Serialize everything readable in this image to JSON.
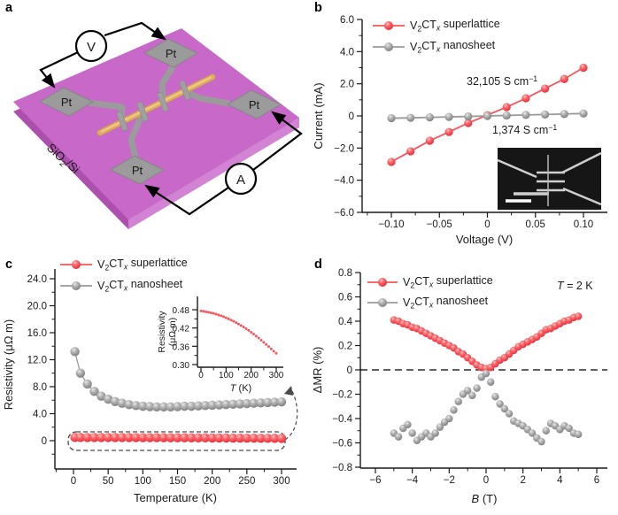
{
  "palette": {
    "red": "#f5454e",
    "red_line": "#f5565c",
    "gray": "#8f8f8f",
    "gray_line": "#9a9a9a",
    "substrate": "#c868c8",
    "substrate_side_left": "#ad4fad",
    "substrate_side_right": "#d383d3",
    "electrode": "#9b9b9b",
    "nanowire": "#dfae63",
    "meter_text": "#2e5bd7"
  },
  "panel_a": {
    "label": "a",
    "substrate_label": "SiO{2}/Si",
    "electrode_label": "Pt",
    "voltmeter_label": "V",
    "ammeter_label": "A"
  },
  "panel_b": {
    "label": "b",
    "chart_data": {
      "type": "scatter",
      "xlabel": "Voltage (V)",
      "ylabel": "Current (mA)",
      "xlim": [
        -0.13,
        0.125
      ],
      "ylim": [
        -6,
        6
      ],
      "xticks": {
        "values": [
          -0.1,
          -0.05,
          0,
          0.05,
          0.1
        ],
        "labels": [
          "−0.10",
          "−0.05",
          "0",
          "0.05",
          "0.10"
        ]
      },
      "yticks": {
        "values": [
          6,
          4,
          2,
          0,
          -2,
          -4,
          -6
        ],
        "labels": [
          "6.0",
          "4.0",
          "2.0",
          "0",
          "−2.0",
          "−4.0",
          "−6.0"
        ]
      },
      "legend": [
        {
          "label": "V{2}CT{x} superlattice",
          "color": "red"
        },
        {
          "label": "V{2}CT{x} nanosheet",
          "color": "gray"
        }
      ],
      "annotations": [
        "32,105 S cm^{−1}",
        "1,374 S cm^{−1}"
      ],
      "series": [
        {
          "name": "V2CTx superlattice",
          "color": "red",
          "line": true,
          "x": [
            -0.1,
            -0.08,
            -0.06,
            -0.04,
            -0.02,
            0,
            0.02,
            0.04,
            0.06,
            0.08,
            0.1
          ],
          "y": [
            -2.86,
            -2.2,
            -1.54,
            -1.0,
            -0.44,
            0.05,
            0.55,
            1.1,
            1.7,
            2.3,
            3.0
          ]
        },
        {
          "name": "V2CTx nanosheet",
          "color": "gray",
          "line": true,
          "x": [
            -0.1,
            -0.08,
            -0.06,
            -0.04,
            -0.02,
            0,
            0.02,
            0.04,
            0.06,
            0.08,
            0.1
          ],
          "y": [
            -0.14,
            -0.12,
            -0.09,
            -0.06,
            -0.03,
            0,
            0.03,
            0.06,
            0.09,
            0.12,
            0.15
          ]
        }
      ],
      "inset": {
        "type": "sem-image",
        "description": "scanning electron micrograph of device with scale bar"
      }
    }
  },
  "panel_c": {
    "label": "c",
    "chart_data": {
      "type": "scatter",
      "xlabel": "Temperature (K)",
      "ylabel": "Resistivity (μΩ m)",
      "xlim": [
        -27,
        322
      ],
      "ylim": [
        -4.2,
        25.4
      ],
      "xticks": {
        "values": [
          0,
          50,
          100,
          150,
          200,
          250,
          300
        ],
        "labels": [
          "0",
          "50",
          "100",
          "150",
          "200",
          "250",
          "300"
        ]
      },
      "yticks": {
        "values": [
          24,
          20,
          16,
          12,
          8,
          4,
          0
        ],
        "labels": [
          "24.0",
          "20.0",
          "16.0",
          "12.0",
          "8.0",
          "4.0",
          "0"
        ]
      },
      "legend": [
        {
          "label": "V{2}CT{x} superlattice",
          "color": "red"
        },
        {
          "label": "V{2}CT{x} nanosheet",
          "color": "gray"
        }
      ],
      "series": [
        {
          "name": "V2CTx nanosheet",
          "color": "gray",
          "line": true,
          "x": [
            2,
            10,
            20,
            30,
            40,
            50,
            60,
            70,
            80,
            90,
            100,
            110,
            120,
            130,
            140,
            150,
            160,
            170,
            180,
            190,
            200,
            210,
            220,
            230,
            240,
            250,
            260,
            270,
            280,
            290,
            300
          ],
          "y": [
            13.2,
            10.0,
            8.4,
            7.3,
            6.6,
            6.15,
            5.8,
            5.55,
            5.35,
            5.2,
            5.1,
            5.05,
            5.0,
            5.0,
            5.0,
            5.05,
            5.1,
            5.1,
            5.15,
            5.2,
            5.25,
            5.3,
            5.35,
            5.4,
            5.45,
            5.5,
            5.55,
            5.6,
            5.65,
            5.7,
            5.75
          ]
        },
        {
          "name": "V2CTx superlattice",
          "color": "red",
          "line": false,
          "x": [
            2,
            10,
            20,
            30,
            40,
            50,
            60,
            70,
            80,
            90,
            100,
            110,
            120,
            130,
            140,
            150,
            160,
            170,
            180,
            190,
            200,
            210,
            220,
            230,
            240,
            250,
            260,
            270,
            280,
            290,
            300
          ],
          "y": [
            0.476,
            0.4745,
            0.473,
            0.4715,
            0.47,
            0.468,
            0.4655,
            0.463,
            0.46,
            0.457,
            0.4535,
            0.45,
            0.446,
            0.442,
            0.4375,
            0.433,
            0.428,
            0.423,
            0.4175,
            0.412,
            0.406,
            0.4,
            0.3935,
            0.387,
            0.38,
            0.373,
            0.366,
            0.359,
            0.3515,
            0.344,
            0.337
          ]
        }
      ],
      "inset": {
        "type": "line",
        "xlabel": "*T* (K)",
        "ylabel_line1": "Resistivity",
        "ylabel_line2": "(μΩ m)",
        "xticks": {
          "values": [
            0,
            100,
            200,
            300
          ],
          "labels": [
            "0",
            "100",
            "200",
            "300"
          ]
        },
        "yticks": {
          "values": [
            0.48,
            0.42,
            0.36,
            0.3
          ],
          "labels": [
            "0.48",
            "0.42",
            "0.36",
            "0.30"
          ]
        },
        "series": {
          "name": "V2CTx superlattice zoom",
          "color": "red",
          "x": [
            0,
            10,
            20,
            30,
            40,
            50,
            60,
            70,
            80,
            90,
            100,
            110,
            120,
            130,
            140,
            150,
            160,
            170,
            180,
            190,
            200,
            210,
            220,
            230,
            240,
            250,
            260,
            270,
            280,
            290,
            300
          ],
          "y": [
            0.476,
            0.4745,
            0.473,
            0.4715,
            0.47,
            0.468,
            0.4655,
            0.463,
            0.46,
            0.457,
            0.4535,
            0.45,
            0.446,
            0.442,
            0.4375,
            0.433,
            0.428,
            0.423,
            0.4175,
            0.412,
            0.406,
            0.4,
            0.3935,
            0.387,
            0.38,
            0.373,
            0.366,
            0.359,
            0.3515,
            0.344,
            0.337
          ]
        }
      }
    }
  },
  "panel_d": {
    "label": "d",
    "chart_data": {
      "type": "scatter",
      "xlabel": "*B* (T)",
      "ylabel": "ΔMR (%)",
      "xlim": [
        -6.8,
        6.6
      ],
      "ylim": [
        -0.81,
        0.8
      ],
      "xticks": {
        "values": [
          -6,
          -4,
          -2,
          0,
          2,
          4,
          6
        ],
        "labels": [
          "−6",
          "−4",
          "−2",
          "0",
          "2",
          "4",
          "6"
        ]
      },
      "yticks": {
        "values": [
          0.8,
          0.6,
          0.4,
          0.2,
          0,
          -0.2,
          -0.4,
          -0.6,
          -0.8
        ],
        "labels": [
          "0.8",
          "0.6",
          "0.4",
          "0.2",
          "0",
          "−0.2",
          "−0.4",
          "−0.6",
          "−0.8"
        ]
      },
      "legend": [
        {
          "label": "V{2}CT{x} superlattice",
          "color": "red"
        },
        {
          "label": "V{2}CT{x} nanosheet",
          "color": "gray"
        }
      ],
      "annotations": [
        "*T* = 2 K"
      ],
      "zero_line": true,
      "series": [
        {
          "name": "V2CTx superlattice",
          "color": "red",
          "line": false,
          "x": [
            -5,
            -4.75,
            -4.5,
            -4.25,
            -4,
            -3.75,
            -3.5,
            -3.25,
            -3,
            -2.75,
            -2.5,
            -2.25,
            -2,
            -1.75,
            -1.5,
            -1.25,
            -1,
            -0.75,
            -0.5,
            -0.25,
            0,
            0.25,
            0.5,
            0.75,
            1,
            1.25,
            1.5,
            1.75,
            2,
            2.25,
            2.5,
            2.75,
            3,
            3.25,
            3.5,
            3.75,
            4,
            4.25,
            4.5,
            4.75,
            5
          ],
          "y": [
            0.41,
            0.4,
            0.38,
            0.37,
            0.35,
            0.34,
            0.32,
            0.3,
            0.28,
            0.26,
            0.24,
            0.22,
            0.2,
            0.18,
            0.15,
            0.13,
            0.1,
            0.07,
            0.04,
            0.02,
            0.01,
            0.02,
            0.05,
            0.08,
            0.1,
            0.13,
            0.16,
            0.19,
            0.21,
            0.23,
            0.25,
            0.27,
            0.3,
            0.33,
            0.34,
            0.36,
            0.38,
            0.4,
            0.41,
            0.43,
            0.44
          ]
        },
        {
          "name": "V2CTx nanosheet",
          "color": "gray",
          "line": false,
          "x": [
            -5,
            -4.75,
            -4.5,
            -4.25,
            -4,
            -3.75,
            -3.5,
            -3.25,
            -3,
            -2.75,
            -2.5,
            -2.25,
            -2,
            -1.75,
            -1.5,
            -1.25,
            -1,
            -0.75,
            -0.5,
            -0.25,
            0,
            0.25,
            0.5,
            0.75,
            1,
            1.25,
            1.5,
            1.75,
            2,
            2.25,
            2.5,
            2.75,
            3,
            3.25,
            3.5,
            3.75,
            4,
            4.25,
            4.5,
            4.75,
            5
          ],
          "y": [
            -0.52,
            -0.55,
            -0.48,
            -0.45,
            -0.52,
            -0.58,
            -0.55,
            -0.52,
            -0.55,
            -0.52,
            -0.47,
            -0.43,
            -0.4,
            -0.33,
            -0.26,
            -0.2,
            -0.17,
            -0.21,
            -0.15,
            -0.06,
            -0.03,
            -0.1,
            -0.22,
            -0.28,
            -0.32,
            -0.36,
            -0.42,
            -0.44,
            -0.46,
            -0.49,
            -0.52,
            -0.56,
            -0.59,
            -0.5,
            -0.44,
            -0.46,
            -0.49,
            -0.46,
            -0.48,
            -0.52,
            -0.53
          ]
        }
      ]
    }
  }
}
